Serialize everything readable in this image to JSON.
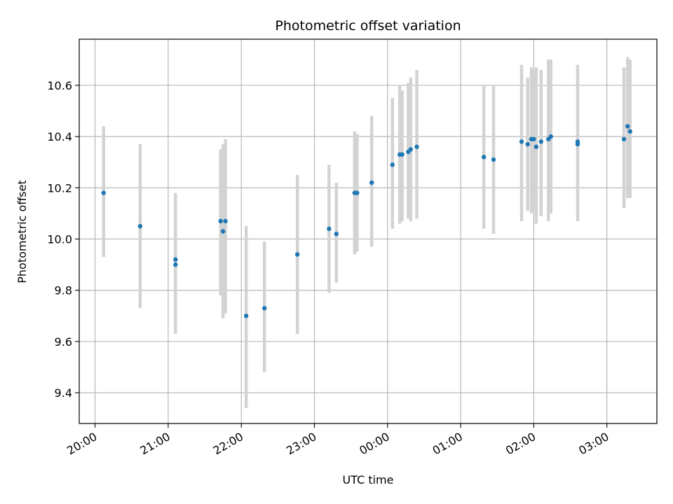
{
  "chart_data": {
    "type": "scatter",
    "title": "Photometric offset variation",
    "xlabel": "UTC time",
    "ylabel": "Photometric offset",
    "grid": true,
    "x_unit": "UTC time (HH:MM)",
    "xlim": [
      "19:47",
      "03:41"
    ],
    "ylim": [
      9.28,
      10.78
    ],
    "x_ticks": [
      "20:00",
      "21:00",
      "22:00",
      "23:00",
      "00:00",
      "01:00",
      "02:00",
      "03:00"
    ],
    "y_ticks": [
      9.4,
      9.6,
      9.8,
      10.0,
      10.2,
      10.4,
      10.6
    ],
    "y_tick_labels": [
      "9.4",
      "9.6",
      "9.8",
      "10.0",
      "10.2",
      "10.4",
      "10.6"
    ],
    "colors": {
      "points": "#1f77b4",
      "error_bars": "#d3d3d3",
      "grid": "#b0b0b0",
      "axes": "#000000"
    },
    "points": [
      {
        "x": "20:07",
        "y": 10.18,
        "ylow": 9.93,
        "yhigh": 10.44
      },
      {
        "x": "20:37",
        "y": 10.05,
        "ylow": 9.73,
        "yhigh": 10.37
      },
      {
        "x": "21:06",
        "y": 9.92,
        "ylow": 9.63,
        "yhigh": 10.18
      },
      {
        "x": "21:06",
        "y": 9.9
      },
      {
        "x": "21:43",
        "y": 10.07,
        "ylow": 9.78,
        "yhigh": 10.35
      },
      {
        "x": "21:45",
        "y": 10.03,
        "ylow": 9.69,
        "yhigh": 10.37
      },
      {
        "x": "21:47",
        "y": 10.07,
        "ylow": 9.71,
        "yhigh": 10.39
      },
      {
        "x": "22:04",
        "y": 9.7,
        "ylow": 9.34,
        "yhigh": 10.05
      },
      {
        "x": "22:19",
        "y": 9.73,
        "ylow": 9.48,
        "yhigh": 9.99
      },
      {
        "x": "22:46",
        "y": 9.94,
        "ylow": 9.63,
        "yhigh": 10.25
      },
      {
        "x": "23:12",
        "y": 10.04,
        "ylow": 9.79,
        "yhigh": 10.29
      },
      {
        "x": "23:18",
        "y": 10.02,
        "ylow": 9.83,
        "yhigh": 10.22
      },
      {
        "x": "23:33",
        "y": 10.18,
        "ylow": 9.94,
        "yhigh": 10.42
      },
      {
        "x": "23:35",
        "y": 10.18,
        "ylow": 9.95,
        "yhigh": 10.41
      },
      {
        "x": "23:47",
        "y": 10.22,
        "ylow": 9.97,
        "yhigh": 10.48
      },
      {
        "x": "00:04",
        "y": 10.29,
        "ylow": 10.04,
        "yhigh": 10.55
      },
      {
        "x": "00:10",
        "y": 10.33,
        "ylow": 10.06,
        "yhigh": 10.6
      },
      {
        "x": "00:12",
        "y": 10.33,
        "ylow": 10.07,
        "yhigh": 10.58
      },
      {
        "x": "00:17",
        "y": 10.34,
        "ylow": 10.08,
        "yhigh": 10.61
      },
      {
        "x": "00:19",
        "y": 10.35,
        "ylow": 10.07,
        "yhigh": 10.63
      },
      {
        "x": "00:24",
        "y": 10.36,
        "ylow": 10.08,
        "yhigh": 10.66
      },
      {
        "x": "01:19",
        "y": 10.32,
        "ylow": 10.04,
        "yhigh": 10.6
      },
      {
        "x": "01:27",
        "y": 10.31,
        "ylow": 10.02,
        "yhigh": 10.6
      },
      {
        "x": "01:50",
        "y": 10.38,
        "ylow": 10.07,
        "yhigh": 10.68
      },
      {
        "x": "01:55",
        "y": 10.37,
        "ylow": 10.11,
        "yhigh": 10.63
      },
      {
        "x": "01:58",
        "y": 10.39,
        "ylow": 10.1,
        "yhigh": 10.67
      },
      {
        "x": "02:00",
        "y": 10.39,
        "ylow": 10.11,
        "yhigh": 10.66
      },
      {
        "x": "02:02",
        "y": 10.36,
        "ylow": 10.06,
        "yhigh": 10.67
      },
      {
        "x": "02:06",
        "y": 10.38,
        "ylow": 10.09,
        "yhigh": 10.66
      },
      {
        "x": "02:12",
        "y": 10.39,
        "ylow": 10.07,
        "yhigh": 10.7
      },
      {
        "x": "02:14",
        "y": 10.4,
        "ylow": 10.1,
        "yhigh": 10.7
      },
      {
        "x": "02:36",
        "y": 10.38,
        "ylow": 10.07,
        "yhigh": 10.68
      },
      {
        "x": "02:36",
        "y": 10.37
      },
      {
        "x": "03:14",
        "y": 10.39,
        "ylow": 10.12,
        "yhigh": 10.67
      },
      {
        "x": "03:17",
        "y": 10.44,
        "ylow": 10.16,
        "yhigh": 10.71
      },
      {
        "x": "03:19",
        "y": 10.42,
        "ylow": 10.16,
        "yhigh": 10.7
      }
    ]
  }
}
